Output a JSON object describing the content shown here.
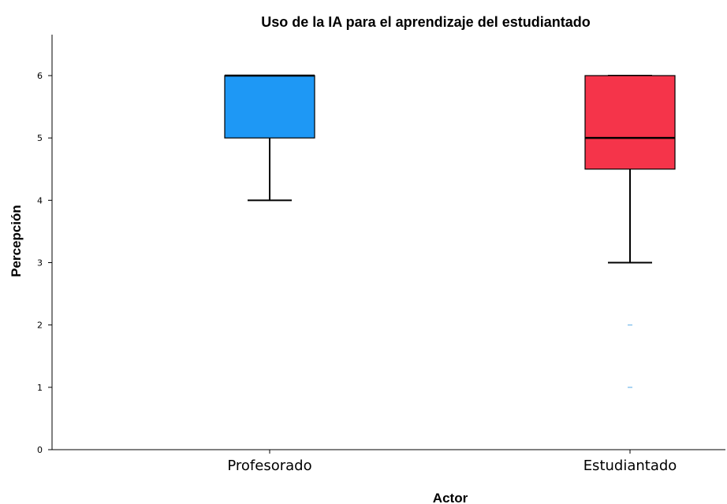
{
  "chart_data": {
    "type": "box",
    "title": "Uso de la IA para el aprendizaje del estudiantado",
    "xlabel": "Actor",
    "ylabel": "Percepción",
    "ylim": [
      0,
      6.6
    ],
    "yticks": [
      0,
      1,
      2,
      3,
      4,
      5,
      6
    ],
    "categories": [
      "Profesorado",
      "Estudiantado"
    ],
    "boxes": [
      {
        "category": "Profesorado",
        "color": "#1e98f5",
        "whisker_low": 4,
        "q1": 5,
        "median": 6,
        "q3": 6,
        "whisker_high": 6,
        "outliers": []
      },
      {
        "category": "Estudiantado",
        "color": "#f5344a",
        "whisker_low": 3,
        "q1": 4.5,
        "median": 5,
        "q3": 6,
        "whisker_high": 6,
        "outliers": [
          2,
          1
        ]
      }
    ],
    "grid": false,
    "legend": "none"
  }
}
